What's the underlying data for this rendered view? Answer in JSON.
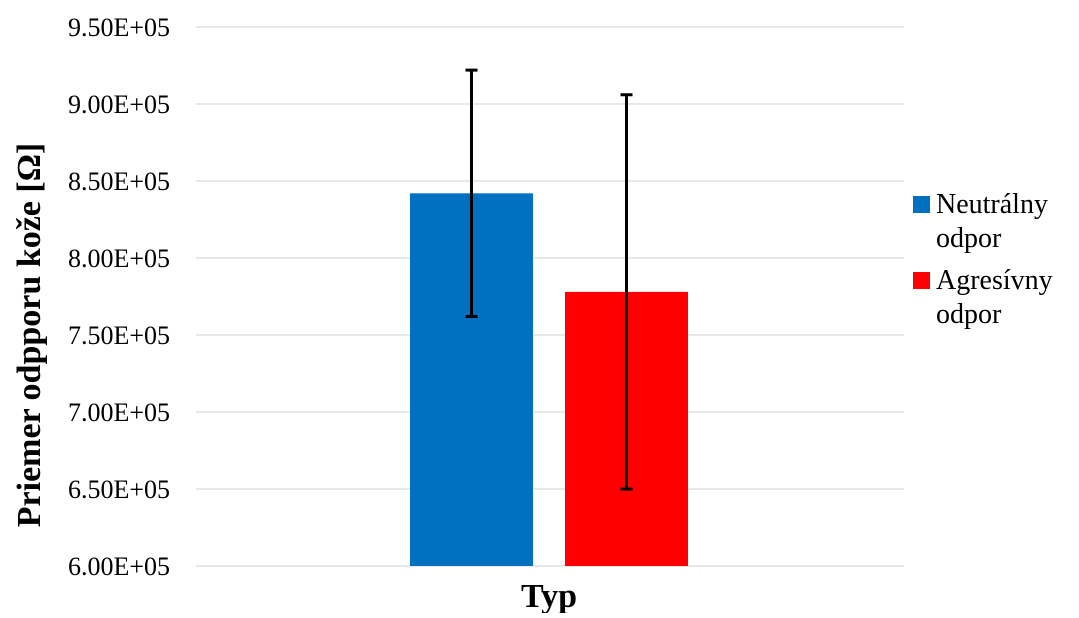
{
  "chart_data": {
    "type": "bar",
    "title": "",
    "xlabel": "Typ",
    "ylabel": "Priemer odpporu kože [Ω]",
    "ylim": [
      600000,
      950000
    ],
    "y_ticks": [
      600000,
      650000,
      700000,
      750000,
      800000,
      850000,
      900000,
      950000
    ],
    "y_tick_labels": [
      "6.00E+05",
      "6.50E+05",
      "7.00E+05",
      "7.50E+05",
      "8.00E+05",
      "8.50E+05",
      "9.00E+05",
      "9.50E+05"
    ],
    "categories": [
      "Typ"
    ],
    "grid": true,
    "legend_position": "right",
    "series": [
      {
        "name": "Neutrálny odpor",
        "legend_lines": [
          "Neutrálny",
          "odpor"
        ],
        "values": [
          842000
        ],
        "error_low": [
          762000
        ],
        "error_high": [
          922000
        ],
        "color": "#0070c0"
      },
      {
        "name": "Agresívny odpor",
        "legend_lines": [
          "Agresívny",
          "odpor"
        ],
        "values": [
          778000
        ],
        "error_low": [
          650000
        ],
        "error_high": [
          906000
        ],
        "color": "#ff0000"
      }
    ]
  }
}
